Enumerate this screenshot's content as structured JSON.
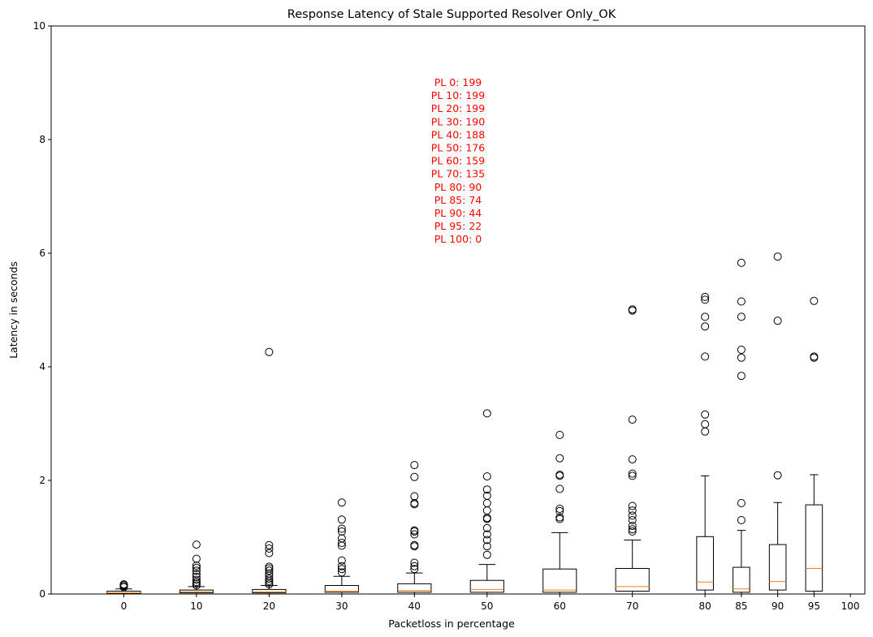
{
  "chart_data": {
    "type": "box",
    "title": "Response Latency of Stale Supported Resolver Only_OK",
    "xlabel": "Packetloss in percentage",
    "ylabel": "Latency in seconds",
    "ylim": [
      0,
      10
    ],
    "xlim": [
      -10,
      102
    ],
    "y_ticks": [
      0,
      2,
      4,
      6,
      8,
      10
    ],
    "x_ticks": [
      0,
      10,
      20,
      30,
      40,
      50,
      60,
      70,
      80,
      85,
      90,
      95,
      100
    ],
    "colors": {
      "box": "#000000",
      "median": "#ff7f0e",
      "annotation": "#ff0000"
    },
    "grid": false,
    "series": [
      {
        "position": 0,
        "whisker_low": 0.0,
        "q1": 0.01,
        "median": 0.02,
        "q3": 0.05,
        "whisker_high": 0.09,
        "fliers": [
          0.12,
          0.14,
          0.16,
          0.17
        ]
      },
      {
        "position": 10,
        "whisker_low": 0.0,
        "q1": 0.02,
        "median": 0.04,
        "q3": 0.07,
        "whisker_high": 0.13,
        "fliers": [
          0.15,
          0.18,
          0.21,
          0.25,
          0.3,
          0.35,
          0.41,
          0.46,
          0.5,
          0.62,
          0.87
        ]
      },
      {
        "position": 20,
        "whisker_low": 0.0,
        "q1": 0.02,
        "median": 0.04,
        "q3": 0.08,
        "whisker_high": 0.15,
        "fliers": [
          0.17,
          0.2,
          0.23,
          0.27,
          0.32,
          0.36,
          0.41,
          0.45,
          0.48,
          0.72,
          0.8,
          0.86,
          4.26
        ]
      },
      {
        "position": 30,
        "whisker_low": 0.0,
        "q1": 0.03,
        "median": 0.05,
        "q3": 0.15,
        "whisker_high": 0.31,
        "fliers": [
          0.38,
          0.44,
          0.49,
          0.59,
          0.85,
          0.9,
          0.98,
          1.1,
          1.15,
          1.31,
          1.61
        ]
      },
      {
        "position": 40,
        "whisker_low": 0.0,
        "q1": 0.03,
        "median": 0.06,
        "q3": 0.18,
        "whisker_high": 0.37,
        "fliers": [
          0.44,
          0.49,
          0.55,
          0.84,
          0.86,
          1.05,
          1.1,
          1.12,
          1.58,
          1.6,
          1.72,
          2.06,
          2.27
        ]
      },
      {
        "position": 50,
        "whisker_low": 0.0,
        "q1": 0.03,
        "median": 0.08,
        "q3": 0.24,
        "whisker_high": 0.52,
        "fliers": [
          0.69,
          0.84,
          0.95,
          1.05,
          1.16,
          1.32,
          1.34,
          1.47,
          1.6,
          1.73,
          1.84,
          2.07,
          3.18
        ]
      },
      {
        "position": 60,
        "whisker_low": 0.0,
        "q1": 0.03,
        "median": 0.07,
        "q3": 0.44,
        "whisker_high": 1.08,
        "fliers": [
          1.32,
          1.35,
          1.46,
          1.5,
          1.85,
          2.08,
          2.1,
          2.39,
          2.8
        ]
      },
      {
        "position": 70,
        "whisker_low": 0.0,
        "q1": 0.05,
        "median": 0.13,
        "q3": 0.45,
        "whisker_high": 0.95,
        "fliers": [
          1.1,
          1.14,
          1.2,
          1.3,
          1.38,
          1.47,
          1.55,
          2.08,
          2.12,
          2.37,
          3.07,
          4.99,
          5.01
        ]
      },
      {
        "position": 80,
        "whisker_low": 0.0,
        "q1": 0.07,
        "median": 0.21,
        "q3": 1.01,
        "whisker_high": 2.08,
        "fliers": [
          2.86,
          2.99,
          3.16,
          4.18,
          4.71,
          4.88,
          5.18,
          5.23
        ]
      },
      {
        "position": 85,
        "whisker_low": 0.0,
        "q1": 0.03,
        "median": 0.09,
        "q3": 0.47,
        "whisker_high": 1.12,
        "fliers": [
          1.3,
          1.6,
          3.84,
          4.16,
          4.3,
          4.88,
          5.15,
          5.83
        ]
      },
      {
        "position": 90,
        "whisker_low": 0.0,
        "q1": 0.07,
        "median": 0.22,
        "q3": 0.87,
        "whisker_high": 1.61,
        "fliers": [
          2.09,
          4.81,
          5.94
        ]
      },
      {
        "position": 95,
        "whisker_low": 0.0,
        "q1": 0.05,
        "median": 0.45,
        "q3": 1.57,
        "whisker_high": 2.1,
        "fliers": [
          4.16,
          4.18,
          5.16
        ]
      }
    ],
    "annotations": [
      "PL 0: 199",
      "PL 10: 199",
      "PL 20: 199",
      "PL 30: 190",
      "PL 40: 188",
      "PL 50: 176",
      "PL 60: 159",
      "PL 70: 135",
      "PL 80: 90",
      "PL 85: 74",
      "PL 90: 44",
      "PL 95: 22",
      "PL 100: 0"
    ]
  }
}
